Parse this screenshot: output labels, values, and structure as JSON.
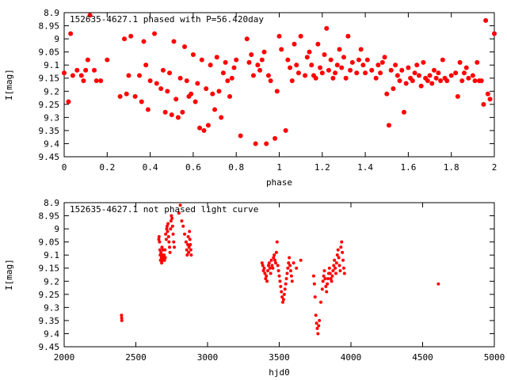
{
  "colors": {
    "points": "#ff0000",
    "axes": "#000000",
    "background": "#ffffff"
  },
  "chart_data": [
    {
      "type": "scatter",
      "title": "152635-4627.1 phased with P=56.420day",
      "xlabel": "phase",
      "ylabel": "I[mag]",
      "xlim": [
        0,
        2
      ],
      "ylim": [
        8.9,
        9.45
      ],
      "y_inverted": true,
      "grid": false,
      "marker": "filled-circle",
      "x_ticks": [
        "0",
        "0.2",
        "0.4",
        "0.6",
        "0.8",
        "1",
        "1.2",
        "1.4",
        "1.6",
        "1.8",
        "2"
      ],
      "y_ticks": [
        "8.9",
        "8.95",
        "9",
        "9.05",
        "9.1",
        "9.15",
        "9.2",
        "9.25",
        "9.3",
        "9.35",
        "9.4",
        "9.45"
      ],
      "points": [
        [
          0.0,
          9.13
        ],
        [
          0.02,
          9.24
        ],
        [
          0.03,
          8.98
        ],
        [
          0.04,
          9.14
        ],
        [
          0.06,
          9.12
        ],
        [
          0.08,
          9.14
        ],
        [
          0.09,
          9.16
        ],
        [
          0.1,
          9.12
        ],
        [
          0.11,
          9.08
        ],
        [
          0.12,
          8.91
        ],
        [
          0.14,
          9.12
        ],
        [
          0.15,
          9.16
        ],
        [
          0.17,
          9.16
        ],
        [
          0.2,
          9.08
        ],
        [
          0.26,
          9.22
        ],
        [
          0.28,
          9.0
        ],
        [
          0.29,
          9.21
        ],
        [
          0.3,
          9.14
        ],
        [
          0.31,
          8.99
        ],
        [
          0.33,
          9.22
        ],
        [
          0.35,
          9.14
        ],
        [
          0.36,
          9.24
        ],
        [
          0.37,
          9.01
        ],
        [
          0.38,
          9.1
        ],
        [
          0.39,
          9.27
        ],
        [
          0.4,
          9.16
        ],
        [
          0.42,
          8.98
        ],
        [
          0.43,
          9.17
        ],
        [
          0.45,
          9.19
        ],
        [
          0.46,
          9.12
        ],
        [
          0.47,
          9.28
        ],
        [
          0.48,
          9.2
        ],
        [
          0.49,
          9.13
        ],
        [
          0.5,
          9.29
        ],
        [
          0.51,
          9.01
        ],
        [
          0.52,
          9.23
        ],
        [
          0.53,
          9.3
        ],
        [
          0.54,
          9.15
        ],
        [
          0.55,
          9.28
        ],
        [
          0.56,
          9.03
        ],
        [
          0.57,
          9.16
        ],
        [
          0.58,
          9.22
        ],
        [
          0.59,
          9.21
        ],
        [
          0.6,
          9.06
        ],
        [
          0.61,
          9.24
        ],
        [
          0.62,
          9.17
        ],
        [
          0.63,
          9.34
        ],
        [
          0.64,
          9.08
        ],
        [
          0.65,
          9.35
        ],
        [
          0.66,
          9.19
        ],
        [
          0.67,
          9.33
        ],
        [
          0.68,
          9.1
        ],
        [
          0.69,
          9.21
        ],
        [
          0.7,
          9.27
        ],
        [
          0.71,
          9.07
        ],
        [
          0.72,
          9.2
        ],
        [
          0.73,
          9.3
        ],
        [
          0.74,
          9.13
        ],
        [
          0.75,
          9.09
        ],
        [
          0.76,
          9.16
        ],
        [
          0.77,
          9.22
        ],
        [
          0.78,
          9.15
        ],
        [
          0.79,
          9.11
        ],
        [
          0.8,
          9.08
        ],
        [
          0.82,
          9.37
        ],
        [
          0.85,
          9.0
        ],
        [
          0.86,
          9.09
        ],
        [
          0.87,
          9.06
        ],
        [
          0.88,
          9.14
        ],
        [
          0.89,
          9.4
        ],
        [
          0.9,
          9.1
        ],
        [
          0.91,
          9.12
        ],
        [
          0.92,
          9.08
        ],
        [
          0.93,
          9.05
        ],
        [
          0.94,
          9.4
        ],
        [
          0.95,
          9.14
        ],
        [
          0.96,
          9.16
        ],
        [
          0.98,
          9.38
        ],
        [
          0.99,
          9.2
        ],
        [
          1.0,
          8.99
        ],
        [
          1.01,
          9.04
        ],
        [
          1.03,
          9.35
        ],
        [
          1.04,
          9.08
        ],
        [
          1.05,
          9.11
        ],
        [
          1.06,
          9.16
        ],
        [
          1.07,
          9.02
        ],
        [
          1.08,
          9.1
        ],
        [
          1.09,
          9.13
        ],
        [
          1.1,
          8.99
        ],
        [
          1.12,
          9.14
        ],
        [
          1.13,
          9.07
        ],
        [
          1.14,
          9.05
        ],
        [
          1.15,
          9.1
        ],
        [
          1.16,
          9.14
        ],
        [
          1.17,
          9.15
        ],
        [
          1.18,
          9.02
        ],
        [
          1.19,
          9.11
        ],
        [
          1.2,
          9.13
        ],
        [
          1.21,
          9.06
        ],
        [
          1.22,
          8.96
        ],
        [
          1.23,
          9.12
        ],
        [
          1.24,
          9.08
        ],
        [
          1.25,
          9.15
        ],
        [
          1.26,
          9.13
        ],
        [
          1.27,
          9.1
        ],
        [
          1.28,
          9.04
        ],
        [
          1.29,
          9.11
        ],
        [
          1.3,
          9.07
        ],
        [
          1.31,
          9.15
        ],
        [
          1.32,
          8.99
        ],
        [
          1.33,
          9.12
        ],
        [
          1.34,
          9.09
        ],
        [
          1.36,
          9.13
        ],
        [
          1.37,
          9.08
        ],
        [
          1.38,
          9.04
        ],
        [
          1.39,
          9.1
        ],
        [
          1.4,
          9.13
        ],
        [
          1.41,
          9.08
        ],
        [
          1.43,
          9.12
        ],
        [
          1.45,
          9.15
        ],
        [
          1.46,
          9.1
        ],
        [
          1.47,
          9.13
        ],
        [
          1.48,
          9.09
        ],
        [
          1.49,
          9.07
        ],
        [
          1.5,
          9.21
        ],
        [
          1.51,
          9.33
        ],
        [
          1.52,
          9.12
        ],
        [
          1.53,
          9.19
        ],
        [
          1.54,
          9.1
        ],
        [
          1.55,
          9.14
        ],
        [
          1.56,
          9.16
        ],
        [
          1.57,
          9.12
        ],
        [
          1.58,
          9.28
        ],
        [
          1.59,
          9.17
        ],
        [
          1.6,
          9.11
        ],
        [
          1.61,
          9.15
        ],
        [
          1.62,
          9.16
        ],
        [
          1.63,
          9.13
        ],
        [
          1.64,
          9.1
        ],
        [
          1.65,
          9.14
        ],
        [
          1.66,
          9.18
        ],
        [
          1.67,
          9.09
        ],
        [
          1.68,
          9.15
        ],
        [
          1.69,
          9.16
        ],
        [
          1.7,
          9.14
        ],
        [
          1.71,
          9.17
        ],
        [
          1.72,
          9.12
        ],
        [
          1.73,
          9.15
        ],
        [
          1.74,
          9.13
        ],
        [
          1.75,
          9.16
        ],
        [
          1.76,
          9.08
        ],
        [
          1.77,
          9.15
        ],
        [
          1.78,
          9.16
        ],
        [
          1.8,
          9.14
        ],
        [
          1.82,
          9.13
        ],
        [
          1.83,
          9.22
        ],
        [
          1.84,
          9.09
        ],
        [
          1.85,
          9.16
        ],
        [
          1.86,
          9.13
        ],
        [
          1.87,
          9.11
        ],
        [
          1.88,
          9.15
        ],
        [
          1.9,
          9.14
        ],
        [
          1.91,
          9.16
        ],
        [
          1.92,
          9.09
        ],
        [
          1.93,
          9.16
        ],
        [
          1.94,
          9.16
        ],
        [
          1.95,
          9.25
        ],
        [
          1.96,
          8.93
        ],
        [
          1.97,
          9.21
        ],
        [
          1.98,
          9.23
        ],
        [
          2.0,
          8.98
        ]
      ]
    },
    {
      "type": "scatter",
      "title": "152635-4627.1 not phased light curve",
      "xlabel": "hjd0",
      "ylabel": "I[mag]",
      "xlim": [
        2000,
        5000
      ],
      "ylim": [
        8.9,
        9.45
      ],
      "y_inverted": true,
      "grid": false,
      "marker": "small-filled-circle",
      "x_ticks": [
        "2000",
        "2500",
        "3000",
        "3500",
        "4000",
        "4500",
        "5000"
      ],
      "y_ticks": [
        "8.9",
        "8.95",
        "9",
        "9.05",
        "9.1",
        "9.15",
        "9.2",
        "9.25",
        "9.3",
        "9.35",
        "9.4",
        "9.45"
      ],
      "points": [
        [
          2400,
          9.33
        ],
        [
          2401,
          9.34
        ],
        [
          2402,
          9.35
        ],
        [
          2660,
          9.04
        ],
        [
          2662,
          9.03
        ],
        [
          2665,
          9.05
        ],
        [
          2668,
          9.08
        ],
        [
          2670,
          9.1
        ],
        [
          2672,
          9.12
        ],
        [
          2675,
          9.09
        ],
        [
          2678,
          9.11
        ],
        [
          2680,
          9.13
        ],
        [
          2682,
          9.07
        ],
        [
          2685,
          9.1
        ],
        [
          2688,
          9.12
        ],
        [
          2690,
          9.08
        ],
        [
          2693,
          9.11
        ],
        [
          2697,
          9.1
        ],
        [
          2700,
          9.12
        ],
        [
          2703,
          9.08
        ],
        [
          2705,
          9.11
        ],
        [
          2708,
          9.02
        ],
        [
          2712,
          9.04
        ],
        [
          2715,
          9.0
        ],
        [
          2718,
          8.99
        ],
        [
          2721,
          9.01
        ],
        [
          2724,
          8.98
        ],
        [
          2728,
          9.03
        ],
        [
          2731,
          9.05
        ],
        [
          2735,
          9.07
        ],
        [
          2738,
          9.09
        ],
        [
          2742,
          9.0
        ],
        [
          2745,
          8.97
        ],
        [
          2748,
          8.95
        ],
        [
          2752,
          8.96
        ],
        [
          2756,
          8.99
        ],
        [
          2760,
          9.02
        ],
        [
          2764,
          9.05
        ],
        [
          2768,
          9.07
        ],
        [
          2800,
          8.94
        ],
        [
          2810,
          8.91
        ],
        [
          2820,
          8.97
        ],
        [
          2830,
          8.99
        ],
        [
          2840,
          9.02
        ],
        [
          2850,
          9.05
        ],
        [
          2855,
          9.08
        ],
        [
          2858,
          9.1
        ],
        [
          2862,
          9.06
        ],
        [
          2865,
          9.03
        ],
        [
          2868,
          9.09
        ],
        [
          2871,
          9.07
        ],
        [
          2874,
          9.01
        ],
        [
          2877,
          9.04
        ],
        [
          2880,
          9.06
        ],
        [
          2883,
          9.08
        ],
        [
          2886,
          9.1
        ],
        [
          3380,
          9.13
        ],
        [
          3385,
          9.14
        ],
        [
          3390,
          9.16
        ],
        [
          3395,
          9.15
        ],
        [
          3400,
          9.17
        ],
        [
          3405,
          9.19
        ],
        [
          3410,
          9.18
        ],
        [
          3415,
          9.2
        ],
        [
          3420,
          9.16
        ],
        [
          3425,
          9.14
        ],
        [
          3430,
          9.13
        ],
        [
          3435,
          9.15
        ],
        [
          3440,
          9.17
        ],
        [
          3445,
          9.12
        ],
        [
          3450,
          9.14
        ],
        [
          3455,
          9.15
        ],
        [
          3460,
          9.11
        ],
        [
          3465,
          9.1
        ],
        [
          3470,
          9.12
        ],
        [
          3475,
          9.13
        ],
        [
          3480,
          9.09
        ],
        [
          3485,
          9.05
        ],
        [
          3490,
          9.14
        ],
        [
          3495,
          9.16
        ],
        [
          3500,
          9.18
        ],
        [
          3505,
          9.2
        ],
        [
          3510,
          9.22
        ],
        [
          3515,
          9.24
        ],
        [
          3520,
          9.26
        ],
        [
          3525,
          9.28
        ],
        [
          3530,
          9.27
        ],
        [
          3535,
          9.25
        ],
        [
          3540,
          9.23
        ],
        [
          3545,
          9.21
        ],
        [
          3550,
          9.19
        ],
        [
          3555,
          9.17
        ],
        [
          3560,
          9.15
        ],
        [
          3565,
          9.13
        ],
        [
          3570,
          9.11
        ],
        [
          3575,
          9.14
        ],
        [
          3580,
          9.16
        ],
        [
          3585,
          9.18
        ],
        [
          3590,
          9.2
        ],
        [
          3600,
          9.13
        ],
        [
          3620,
          9.15
        ],
        [
          3650,
          9.12
        ],
        [
          3740,
          9.18
        ],
        [
          3745,
          9.21
        ],
        [
          3750,
          9.26
        ],
        [
          3755,
          9.33
        ],
        [
          3760,
          9.36
        ],
        [
          3765,
          9.38
        ],
        [
          3770,
          9.4
        ],
        [
          3775,
          9.37
        ],
        [
          3780,
          9.35
        ],
        [
          3790,
          9.28
        ],
        [
          3800,
          9.23
        ],
        [
          3805,
          9.2
        ],
        [
          3810,
          9.18
        ],
        [
          3815,
          9.16
        ],
        [
          3820,
          9.19
        ],
        [
          3825,
          9.22
        ],
        [
          3830,
          9.24
        ],
        [
          3835,
          9.21
        ],
        [
          3840,
          9.19
        ],
        [
          3845,
          9.17
        ],
        [
          3850,
          9.15
        ],
        [
          3855,
          9.17
        ],
        [
          3860,
          9.19
        ],
        [
          3865,
          9.2
        ],
        [
          3870,
          9.18
        ],
        [
          3875,
          9.16
        ],
        [
          3880,
          9.14
        ],
        [
          3885,
          9.12
        ],
        [
          3890,
          9.15
        ],
        [
          3895,
          9.17
        ],
        [
          3900,
          9.13
        ],
        [
          3905,
          9.1
        ],
        [
          3910,
          9.08
        ],
        [
          3915,
          9.11
        ],
        [
          3920,
          9.14
        ],
        [
          3925,
          9.16
        ],
        [
          3930,
          9.07
        ],
        [
          3935,
          9.05
        ],
        [
          3940,
          9.09
        ],
        [
          3945,
          9.12
        ],
        [
          3950,
          9.15
        ],
        [
          3955,
          9.17
        ],
        [
          4610,
          9.21
        ]
      ]
    }
  ]
}
